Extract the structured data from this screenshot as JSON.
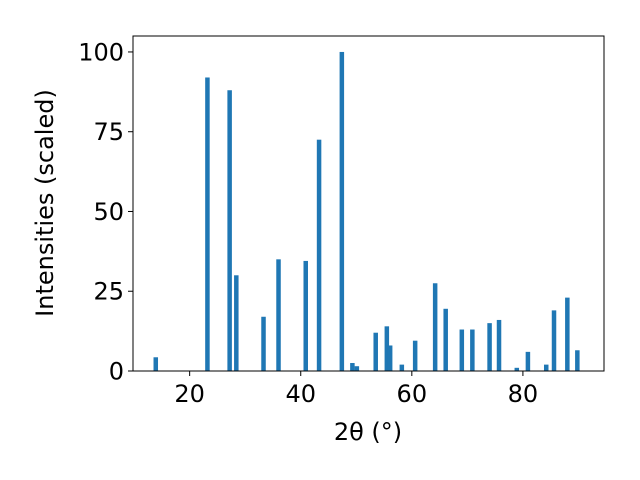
{
  "chart_data": {
    "type": "bar",
    "xlabel": "2θ (°)",
    "ylabel": "Intensities (scaled)",
    "xlim": [
      9.8,
      94.6
    ],
    "ylim": [
      0,
      105
    ],
    "xticks": [
      20,
      40,
      60,
      80
    ],
    "yticks": [
      0,
      25,
      50,
      75,
      100
    ],
    "bar_color": "#1f77b4",
    "grid": false,
    "series": [
      {
        "x": [
          13.9,
          23.2,
          27.2,
          28.4,
          33.3,
          36.0,
          40.9,
          43.3,
          47.4,
          49.3,
          50.1,
          53.5,
          55.5,
          56.1,
          58.2,
          60.6,
          64.2,
          66.1,
          69.0,
          70.9,
          74.0,
          75.7,
          78.9,
          80.9,
          84.2,
          85.6,
          88.0,
          89.8
        ],
        "y": [
          4.3,
          92,
          88,
          30,
          17,
          35,
          34.5,
          72.5,
          100,
          2.5,
          1.5,
          12,
          14,
          8,
          2,
          9.5,
          27.5,
          19.5,
          13,
          13,
          15,
          16,
          1,
          6,
          2,
          19,
          23,
          6.5
        ]
      }
    ]
  }
}
